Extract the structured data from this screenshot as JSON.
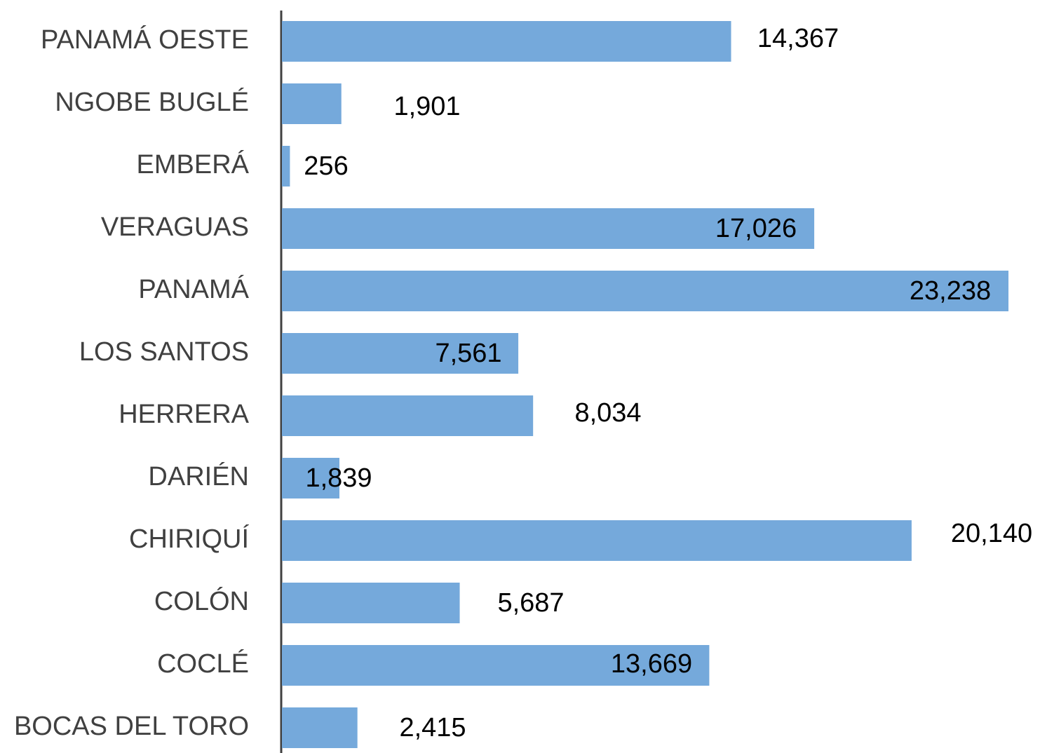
{
  "chart_data": {
    "type": "barh",
    "categories": [
      "PANAMÁ OESTE",
      "NGOBE BUGLÉ",
      "EMBERÁ",
      "VERAGUAS",
      "PANAMÁ",
      "LOS SANTOS",
      "HERRERA",
      "DARIÉN",
      "CHIRIQUÍ",
      "COLÓN",
      "COCLÉ",
      "BOCAS DEL TORO"
    ],
    "values": [
      14367,
      1901,
      256,
      17026,
      23238,
      7561,
      8034,
      1839,
      20140,
      5687,
      13669,
      2415
    ],
    "value_labels": [
      "14,367",
      "1,901",
      "256",
      "17,026",
      "23,238",
      "7,561",
      "8,034",
      "1,839",
      "20,140",
      "5,687",
      "13,669",
      "2,415"
    ],
    "color": "#75a9db",
    "xlim": [
      0,
      24000
    ]
  }
}
